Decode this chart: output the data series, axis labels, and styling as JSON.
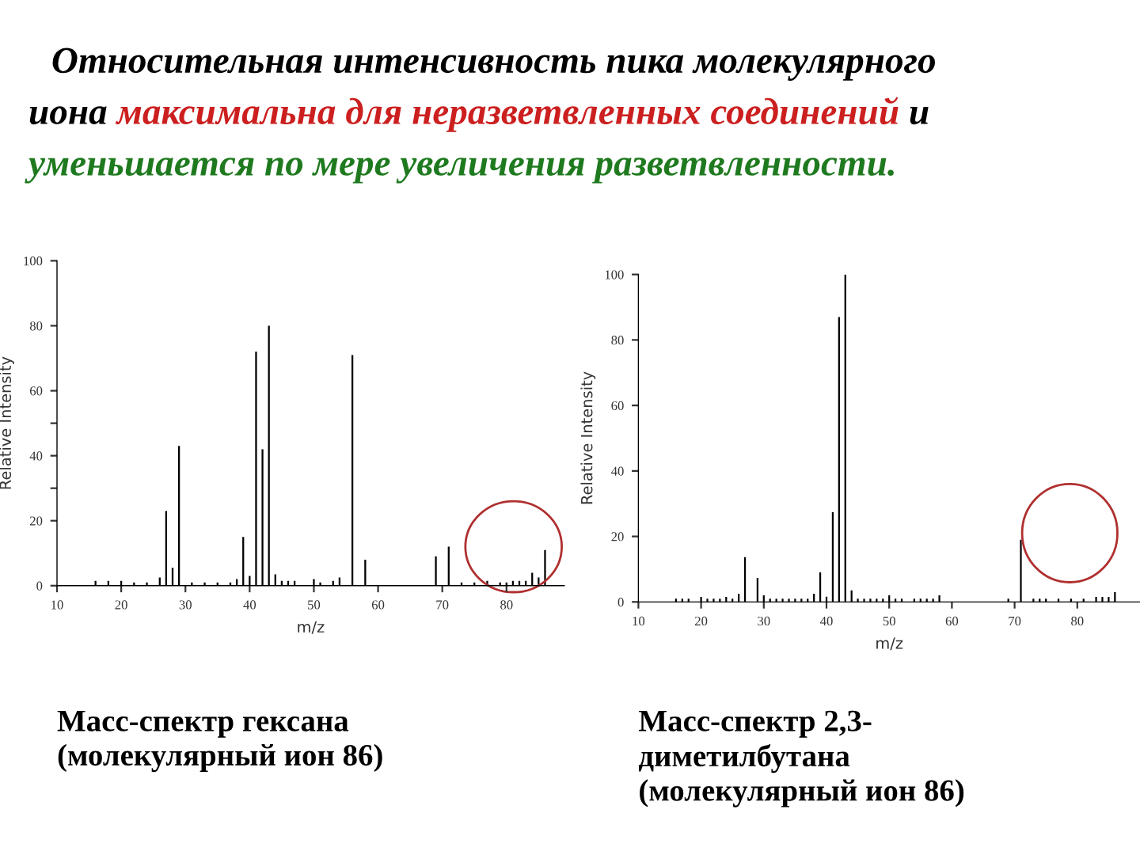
{
  "chart_data": [
    {
      "type": "other",
      "annotations": [
        "Относительная интенсивность пика молекулярного\n",
        "иона ",
        "максимальна для неразветвленных соединений",
        " и\n",
        "уменьшается по мере увеличения разветвленности."
      ],
      "colors": [
        "#000000",
        "#000000",
        "#cc1f1f",
        "#000000",
        "#1f7a1f"
      ]
    },
    {
      "type": "bar",
      "ylabel": "Relative Intensity",
      "xlabel": "m/z",
      "annotations": [
        "Масс-спектр гексана\n(молекулярный ион 86)"
      ],
      "x": [
        16,
        18,
        20,
        22,
        24,
        26,
        27,
        28,
        29,
        31,
        33,
        35,
        37,
        38,
        39,
        40,
        41,
        42,
        43,
        44,
        45,
        46,
        47,
        50,
        51,
        53,
        54,
        56,
        58,
        69,
        71,
        73,
        75,
        77,
        79,
        80,
        81,
        82,
        83,
        84,
        85,
        86
      ],
      "values": [
        1.5,
        1.5,
        1.5,
        1,
        1,
        2.5,
        23,
        5.5,
        43,
        1,
        1,
        1,
        1,
        2,
        15,
        3,
        72,
        42,
        80,
        3.5,
        1.5,
        1.5,
        1.5,
        2,
        1,
        1.5,
        2.5,
        71,
        8,
        9,
        12,
        1,
        1,
        1.5,
        1,
        1,
        1.5,
        1.5,
        1.5,
        4,
        2.5,
        11
      ],
      "color": "#000000",
      "xlim": [
        10,
        89
      ],
      "xticks": [
        10,
        20,
        30,
        40,
        50,
        60,
        70,
        80
      ],
      "ylim": [
        0,
        100
      ],
      "yticks": [
        0,
        20,
        {
          "value": 30,
          "label": null
        },
        40,
        {
          "value": 50,
          "label": null
        },
        60,
        80,
        100
      ]
    },
    {
      "type": "bar",
      "ylabel": "Relative Intensity",
      "xlabel": "m/z",
      "annotations": [
        "Масс-спектр 2,3-\nдиметилбутана\n(молекулярный ион 86)"
      ],
      "x": [
        16,
        17,
        18,
        20,
        21,
        22,
        23,
        24,
        25,
        26,
        27,
        29,
        30,
        31,
        32,
        33,
        34,
        35,
        36,
        37,
        38,
        39,
        40,
        41,
        42,
        43,
        44,
        45,
        46,
        47,
        48,
        49,
        50,
        51,
        52,
        54,
        55,
        56,
        57,
        58,
        69,
        71,
        73,
        74,
        75,
        77,
        79,
        81,
        83,
        84,
        85,
        86
      ],
      "values": [
        1,
        1,
        1,
        1.5,
        1,
        1,
        1,
        1.5,
        1,
        2.5,
        13.7,
        7.3,
        2,
        1,
        1,
        1,
        1,
        1,
        1,
        1,
        2.5,
        9,
        1.6,
        27.4,
        87,
        100,
        3.5,
        1,
        1,
        1,
        1,
        1,
        2,
        1,
        1,
        1,
        1,
        1,
        1,
        2,
        1,
        19,
        1,
        1,
        1,
        1,
        1,
        1,
        1.5,
        1.5,
        1.5,
        3
      ],
      "color": "#000000",
      "xlim": [
        10,
        90
      ],
      "xticks": [
        10,
        20,
        30,
        40,
        50,
        60,
        70,
        80
      ],
      "ylim": [
        0,
        100
      ],
      "yticks": [
        0,
        20,
        40,
        60,
        80,
        100
      ]
    }
  ]
}
